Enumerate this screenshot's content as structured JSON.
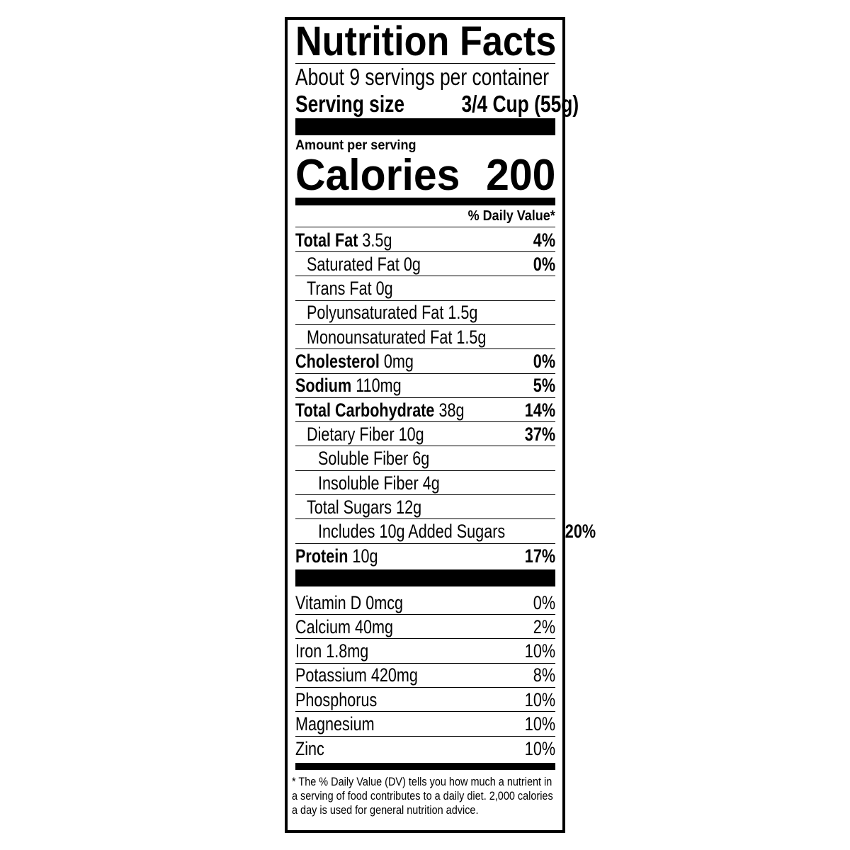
{
  "title": "Nutrition Facts",
  "servings_per_container": "About 9 servings per container",
  "serving_size_label": "Serving size",
  "serving_size_value": "3/4 Cup (55g)",
  "amount_per_serving": "Amount per serving",
  "calories_label": "Calories",
  "calories_value": "200",
  "daily_value_header": "% Daily Value*",
  "nutrients": [
    {
      "name": "Total Fat",
      "amount": "3.5g",
      "dv": "4%",
      "bold": true,
      "indent": 0
    },
    {
      "name": "Saturated Fat",
      "amount": "0g",
      "dv": "0%",
      "bold": false,
      "indent": 1
    },
    {
      "name": "Trans Fat",
      "amount": "0g",
      "dv": "",
      "bold": false,
      "indent": 1
    },
    {
      "name": "Polyunsaturated Fat",
      "amount": "1.5g",
      "dv": "",
      "bold": false,
      "indent": 1
    },
    {
      "name": "Monounsaturated Fat",
      "amount": "1.5g",
      "dv": "",
      "bold": false,
      "indent": 1
    },
    {
      "name": "Cholesterol",
      "amount": "0mg",
      "dv": "0%",
      "bold": true,
      "indent": 0
    },
    {
      "name": "Sodium",
      "amount": "110mg",
      "dv": "5%",
      "bold": true,
      "indent": 0
    },
    {
      "name": "Total Carbohydrate",
      "amount": "38g",
      "dv": "14%",
      "bold": true,
      "indent": 0
    },
    {
      "name": "Dietary Fiber",
      "amount": "10g",
      "dv": "37%",
      "bold": false,
      "indent": 1
    },
    {
      "name": "Soluble Fiber",
      "amount": "6g",
      "dv": "",
      "bold": false,
      "indent": 2
    },
    {
      "name": "Insoluble Fiber",
      "amount": "4g",
      "dv": "",
      "bold": false,
      "indent": 2
    },
    {
      "name": "Total Sugars",
      "amount": "12g",
      "dv": "",
      "bold": false,
      "indent": 1
    },
    {
      "name": "Includes 10g Added Sugars",
      "amount": "",
      "dv": "20%",
      "bold": false,
      "indent": 2
    },
    {
      "name": "Protein",
      "amount": "10g",
      "dv": "17%",
      "bold": true,
      "indent": 0
    }
  ],
  "vitamins": [
    {
      "label": "Vitamin D 0mcg",
      "dv": "0%"
    },
    {
      "label": "Calcium 40mg",
      "dv": "2%"
    },
    {
      "label": "Iron 1.8mg",
      "dv": "10%"
    },
    {
      "label": "Potassium 420mg",
      "dv": "8%"
    },
    {
      "label": "Phosphorus",
      "dv": "10%"
    },
    {
      "label": "Magnesium",
      "dv": "10%"
    },
    {
      "label": "Zinc",
      "dv": "10%"
    }
  ],
  "footnote": "* The % Daily Value (DV) tells you how much a nutrient in a serving of food contributes to a daily diet. 2,000 calories a day is used for general nutrition advice."
}
